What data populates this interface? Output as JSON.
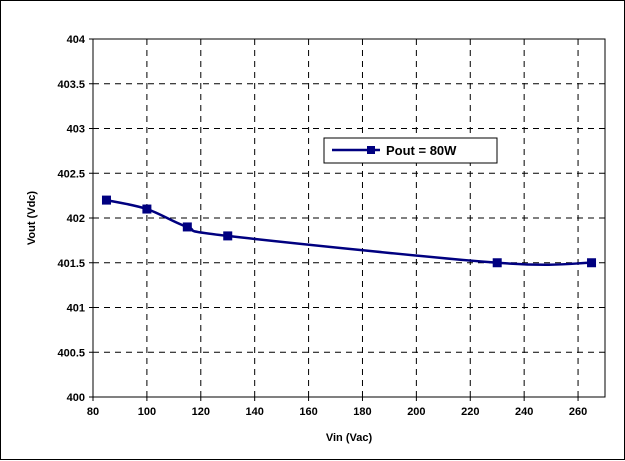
{
  "chart_data": {
    "type": "line",
    "title": "",
    "xlabel": "Vin (Vac)",
    "ylabel": "Vout (Vdc)",
    "xlim": [
      80,
      270
    ],
    "ylim": [
      400,
      404
    ],
    "xticks": [
      80,
      100,
      120,
      140,
      160,
      180,
      200,
      220,
      240,
      260
    ],
    "yticks": [
      400,
      400.5,
      401,
      401.5,
      402,
      402.5,
      403,
      403.5,
      404
    ],
    "grid": true,
    "legend_position": "center-right",
    "series": [
      {
        "name": "Pout = 80W",
        "color": "#000080",
        "marker": "square",
        "x": [
          85,
          100,
          115,
          130,
          230,
          265
        ],
        "y": [
          402.2,
          402.1,
          401.9,
          401.8,
          401.5,
          401.5
        ]
      }
    ]
  }
}
